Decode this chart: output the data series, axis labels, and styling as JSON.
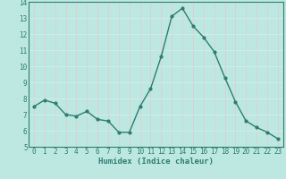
{
  "x": [
    0,
    1,
    2,
    3,
    4,
    5,
    6,
    7,
    8,
    9,
    10,
    11,
    12,
    13,
    14,
    15,
    16,
    17,
    18,
    19,
    20,
    21,
    22,
    23
  ],
  "y": [
    7.5,
    7.9,
    7.7,
    7.0,
    6.9,
    7.2,
    6.7,
    6.6,
    5.9,
    5.9,
    7.5,
    8.6,
    10.6,
    13.1,
    13.6,
    12.5,
    11.8,
    10.9,
    9.3,
    7.8,
    6.6,
    6.2,
    5.9,
    5.5
  ],
  "line_color": "#2d7d6f",
  "marker": "o",
  "marker_size": 2.0,
  "line_width": 1.0,
  "bg_color": "#bde8e2",
  "grid_color_v": "#e8c8c8",
  "grid_color_h": "#d8eee8",
  "xlabel": "Humidex (Indice chaleur)",
  "ylim": [
    5,
    14
  ],
  "xlim": [
    -0.5,
    23.5
  ],
  "yticks": [
    5,
    6,
    7,
    8,
    9,
    10,
    11,
    12,
    13,
    14
  ],
  "xticks": [
    0,
    1,
    2,
    3,
    4,
    5,
    6,
    7,
    8,
    9,
    10,
    11,
    12,
    13,
    14,
    15,
    16,
    17,
    18,
    19,
    20,
    21,
    22,
    23
  ],
  "tick_fontsize": 5.5,
  "label_fontsize": 6.5,
  "tick_color": "#2d7d6f",
  "axis_color": "#2d7d6f"
}
